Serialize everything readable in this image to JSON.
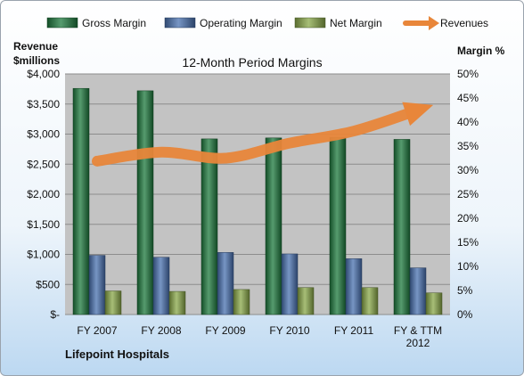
{
  "chart_data": {
    "type": "bar",
    "title": "12-Month Period Margins",
    "left_axis_title": [
      "Revenue",
      "$millions"
    ],
    "right_axis_title": "Margin %",
    "footer": "Lifepoint Hospitals",
    "categories": [
      [
        "FY 2007"
      ],
      [
        "FY 2008"
      ],
      [
        "FY 2009"
      ],
      [
        "FY 2010"
      ],
      [
        "FY 2011"
      ],
      [
        "FY & TTM",
        "2012"
      ]
    ],
    "y_left": {
      "min": 0,
      "max": 4000,
      "step": 500,
      "ticks": [
        "$-",
        "$500",
        "$1,000",
        "$1,500",
        "$2,000",
        "$2,500",
        "$3,000",
        "$3,500",
        "$4,000"
      ]
    },
    "y_right": {
      "min": 0,
      "max": 50,
      "step": 5,
      "ticks": [
        "0%",
        "5%",
        "10%",
        "15%",
        "20%",
        "25%",
        "30%",
        "35%",
        "40%",
        "45%",
        "50%"
      ]
    },
    "series": [
      {
        "name": "Gross Margin",
        "axis": "right",
        "color": "#1e7a3e",
        "values": [
          47,
          46.5,
          36.5,
          36.7,
          36.8,
          36.4
        ]
      },
      {
        "name": "Operating Margin",
        "axis": "right",
        "color": "#4a72b0",
        "values": [
          12.3,
          11.9,
          12.9,
          12.6,
          11.6,
          9.7
        ]
      },
      {
        "name": "Net Margin",
        "axis": "right",
        "color": "#8aa849",
        "values": [
          4.9,
          4.8,
          5.2,
          5.6,
          5.6,
          4.5
        ]
      },
      {
        "name": "Revenues",
        "axis": "left",
        "type": "trend-arrow",
        "color": "#e8863a",
        "values": [
          2550,
          2700,
          2600,
          2850,
          3050,
          3400
        ]
      }
    ],
    "grid": true,
    "legend": "top"
  }
}
